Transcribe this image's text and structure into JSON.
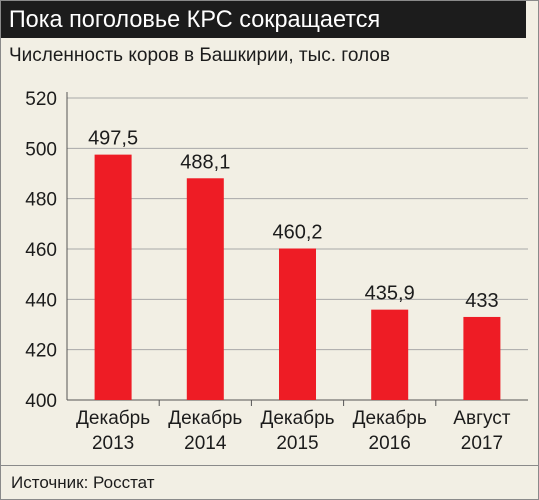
{
  "header": {
    "title": "Пока поголовье КРС сокращается",
    "subtitle": "Численность коров в Башкирии, тыс. голов"
  },
  "footer": {
    "source": "Источник: Росстат"
  },
  "colors": {
    "bar": "#ee1c25",
    "title_bg": "#1c1c1c",
    "background": "#f2efe4",
    "grid": "#a8a8a8"
  },
  "chart_data": {
    "type": "bar",
    "title": "",
    "xlabel": "",
    "ylabel": "",
    "ylim": [
      400,
      520
    ],
    "yticks": [
      400,
      420,
      440,
      460,
      480,
      500,
      520
    ],
    "grid": true,
    "categories": [
      [
        "Декабрь",
        "2013"
      ],
      [
        "Декабрь",
        "2014"
      ],
      [
        "Декабрь",
        "2015"
      ],
      [
        "Декабрь",
        "2016"
      ],
      [
        "Август",
        "2017"
      ]
    ],
    "values": [
      497.5,
      488.1,
      460.2,
      435.9,
      433
    ],
    "value_labels": [
      "497,5",
      "488,1",
      "460,2",
      "435,9",
      "433"
    ]
  }
}
